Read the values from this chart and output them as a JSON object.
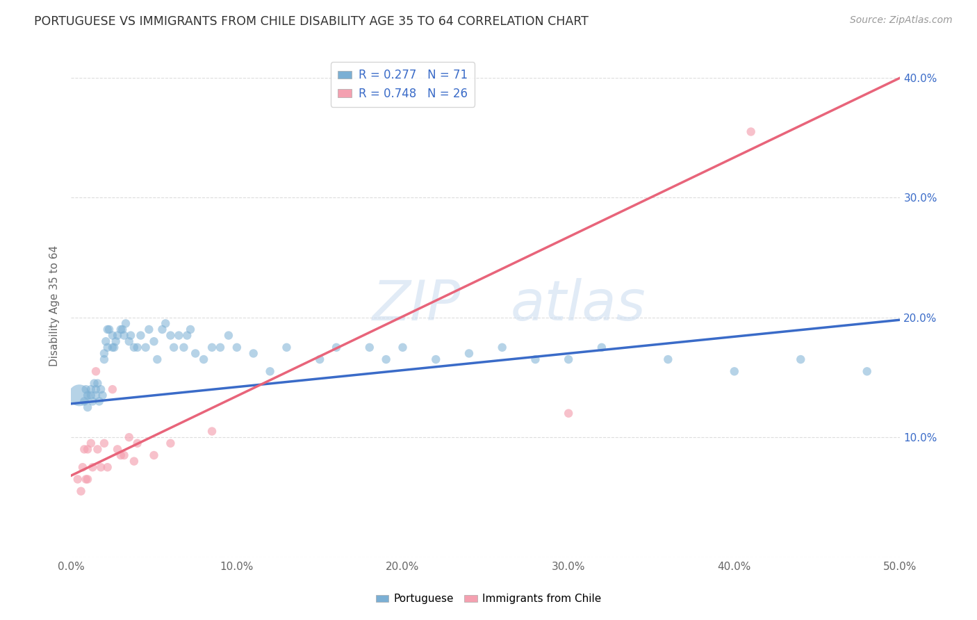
{
  "title": "PORTUGUESE VS IMMIGRANTS FROM CHILE DISABILITY AGE 35 TO 64 CORRELATION CHART",
  "source": "Source: ZipAtlas.com",
  "xlabel": "",
  "ylabel": "Disability Age 35 to 64",
  "xlim": [
    0.0,
    0.5
  ],
  "ylim": [
    0.0,
    0.42
  ],
  "xticks": [
    0.0,
    0.1,
    0.2,
    0.3,
    0.4,
    0.5
  ],
  "yticks": [
    0.0,
    0.1,
    0.2,
    0.3,
    0.4
  ],
  "xticklabels": [
    "0.0%",
    "10.0%",
    "20.0%",
    "30.0%",
    "40.0%",
    "50.0%"
  ],
  "yticklabels_right": [
    "",
    "10.0%",
    "20.0%",
    "30.0%",
    "40.0%"
  ],
  "r_portuguese": 0.277,
  "n_portuguese": 71,
  "r_chile": 0.748,
  "n_chile": 26,
  "color_portuguese": "#7BAFD4",
  "color_chile": "#F4A0B0",
  "line_color_portuguese": "#3A6BC8",
  "line_color_chile": "#E8647A",
  "background_color": "#ffffff",
  "grid_color": "#dddddd",
  "watermark_zip": "ZIP",
  "watermark_atlas": "atlas",
  "blue_line_start_y": 0.128,
  "blue_line_end_y": 0.198,
  "pink_line_start_y": 0.068,
  "pink_line_end_y": 0.4,
  "portuguese_x": [
    0.005,
    0.008,
    0.009,
    0.01,
    0.01,
    0.012,
    0.012,
    0.013,
    0.014,
    0.015,
    0.015,
    0.016,
    0.017,
    0.018,
    0.019,
    0.02,
    0.02,
    0.021,
    0.022,
    0.022,
    0.023,
    0.025,
    0.025,
    0.026,
    0.027,
    0.028,
    0.03,
    0.031,
    0.032,
    0.033,
    0.035,
    0.036,
    0.038,
    0.04,
    0.042,
    0.045,
    0.047,
    0.05,
    0.052,
    0.055,
    0.057,
    0.06,
    0.062,
    0.065,
    0.068,
    0.07,
    0.072,
    0.075,
    0.08,
    0.085,
    0.09,
    0.095,
    0.1,
    0.11,
    0.12,
    0.13,
    0.15,
    0.16,
    0.18,
    0.19,
    0.2,
    0.22,
    0.24,
    0.26,
    0.28,
    0.3,
    0.32,
    0.36,
    0.4,
    0.44,
    0.48
  ],
  "portuguese_y": [
    0.135,
    0.13,
    0.14,
    0.135,
    0.125,
    0.14,
    0.135,
    0.13,
    0.145,
    0.14,
    0.135,
    0.145,
    0.13,
    0.14,
    0.135,
    0.165,
    0.17,
    0.18,
    0.175,
    0.19,
    0.19,
    0.175,
    0.185,
    0.175,
    0.18,
    0.185,
    0.19,
    0.19,
    0.185,
    0.195,
    0.18,
    0.185,
    0.175,
    0.175,
    0.185,
    0.175,
    0.19,
    0.18,
    0.165,
    0.19,
    0.195,
    0.185,
    0.175,
    0.185,
    0.175,
    0.185,
    0.19,
    0.17,
    0.165,
    0.175,
    0.175,
    0.185,
    0.175,
    0.17,
    0.155,
    0.175,
    0.165,
    0.175,
    0.175,
    0.165,
    0.175,
    0.165,
    0.17,
    0.175,
    0.165,
    0.165,
    0.175,
    0.165,
    0.155,
    0.165,
    0.155
  ],
  "portuguese_sizes": [
    500,
    80,
    80,
    80,
    80,
    80,
    80,
    80,
    80,
    80,
    80,
    80,
    80,
    80,
    80,
    80,
    80,
    80,
    80,
    80,
    80,
    80,
    80,
    80,
    80,
    80,
    80,
    80,
    80,
    80,
    80,
    80,
    80,
    80,
    80,
    80,
    80,
    80,
    80,
    80,
    80,
    80,
    80,
    80,
    80,
    80,
    80,
    80,
    80,
    80,
    80,
    80,
    80,
    80,
    80,
    80,
    80,
    80,
    80,
    80,
    80,
    80,
    80,
    80,
    80,
    80,
    80,
    80,
    80,
    80,
    80
  ],
  "chile_x": [
    0.004,
    0.006,
    0.007,
    0.008,
    0.009,
    0.01,
    0.01,
    0.012,
    0.013,
    0.015,
    0.016,
    0.018,
    0.02,
    0.022,
    0.025,
    0.028,
    0.03,
    0.032,
    0.035,
    0.038,
    0.04,
    0.05,
    0.06,
    0.085,
    0.3,
    0.41
  ],
  "chile_y": [
    0.065,
    0.055,
    0.075,
    0.09,
    0.065,
    0.09,
    0.065,
    0.095,
    0.075,
    0.155,
    0.09,
    0.075,
    0.095,
    0.075,
    0.14,
    0.09,
    0.085,
    0.085,
    0.1,
    0.08,
    0.095,
    0.085,
    0.095,
    0.105,
    0.12,
    0.355
  ],
  "chile_sizes": [
    80,
    80,
    80,
    80,
    80,
    80,
    80,
    80,
    80,
    80,
    80,
    80,
    80,
    80,
    80,
    80,
    80,
    80,
    80,
    80,
    80,
    80,
    80,
    80,
    80,
    80
  ]
}
